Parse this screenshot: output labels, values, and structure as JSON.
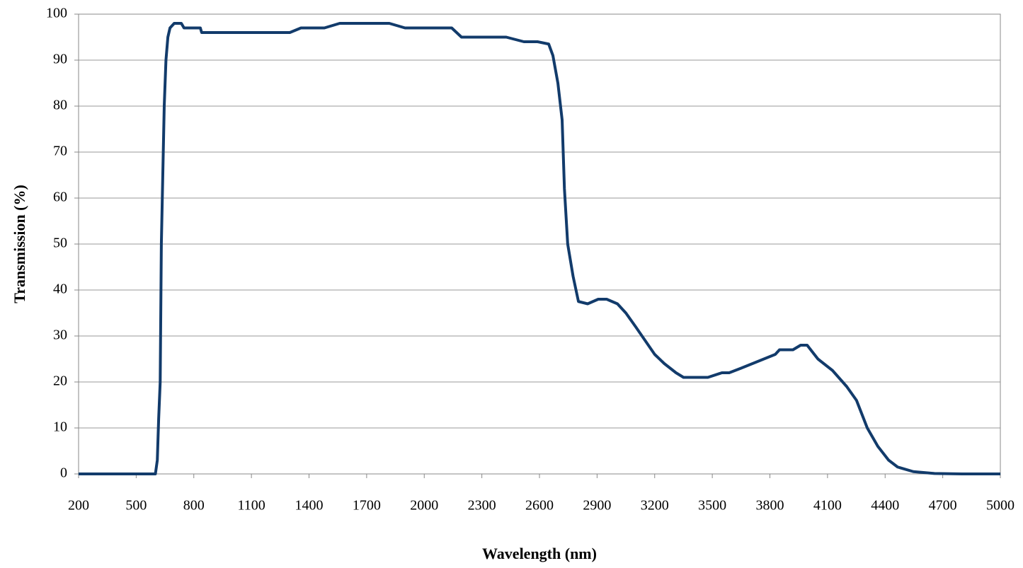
{
  "chart_data": {
    "type": "line",
    "x_label": "Wavelength (nm)",
    "y_label": "Transmission (%)",
    "x": [
      200,
      600,
      610,
      617,
      625,
      631,
      646,
      655,
      665,
      676,
      698,
      735,
      749,
      834,
      841,
      1265,
      1300,
      1358,
      1480,
      1560,
      1818,
      1900,
      2143,
      2194,
      2427,
      2519,
      2590,
      2648,
      2670,
      2696,
      2718,
      2730,
      2747,
      2775,
      2803,
      2851,
      2906,
      2950,
      3006,
      3050,
      3101,
      3200,
      3250,
      3311,
      3350,
      3400,
      3477,
      3550,
      3588,
      3650,
      3828,
      3850,
      3920,
      3960,
      3994,
      4050,
      4126,
      4200,
      4251,
      4307,
      4362,
      4418,
      4465,
      4547,
      4657,
      4800,
      5000
    ],
    "series": [
      {
        "name": "Transmission",
        "color": "#123b6b",
        "values": [
          0,
          0,
          3,
          12,
          20,
          50,
          80,
          90,
          95,
          97,
          98,
          98,
          97,
          97,
          96,
          96,
          96,
          97,
          97,
          98,
          98,
          97,
          97,
          95,
          95,
          94,
          94,
          93.5,
          91,
          85,
          77,
          62,
          50,
          43,
          37.5,
          37,
          38,
          38,
          37,
          35,
          32,
          26,
          24,
          22,
          21,
          21,
          21,
          22,
          22,
          23,
          26,
          27,
          27,
          28,
          28,
          25,
          22.5,
          19,
          16,
          10,
          6,
          3,
          1.5,
          0.5,
          0.1,
          0,
          0
        ]
      }
    ],
    "xlim": [
      200,
      5000
    ],
    "xticks": [
      200,
      500,
      800,
      1100,
      1400,
      1700,
      2000,
      2300,
      2600,
      2900,
      3200,
      3500,
      3800,
      4100,
      4400,
      4700,
      5000
    ],
    "ylim": [
      0,
      100
    ],
    "yticks": [
      0,
      10,
      20,
      30,
      40,
      50,
      60,
      70,
      80,
      90,
      100
    ],
    "grid": true
  }
}
